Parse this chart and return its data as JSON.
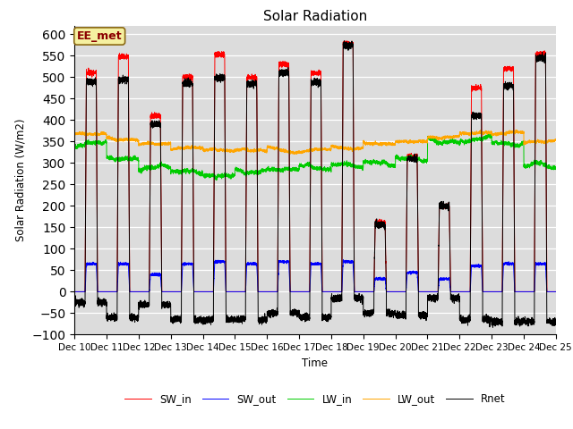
{
  "title": "Solar Radiation",
  "ylabel": "Solar Radiation (W/m2)",
  "xlabel": "Time",
  "xlim": [
    0,
    15
  ],
  "ylim": [
    -100,
    620
  ],
  "yticks": [
    -100,
    -50,
    0,
    50,
    100,
    150,
    200,
    250,
    300,
    350,
    400,
    450,
    500,
    550,
    600
  ],
  "xtick_labels": [
    "Dec 10",
    "Dec 11",
    "Dec 12",
    "Dec 13",
    "Dec 14",
    "Dec 15",
    "Dec 16",
    "Dec 17",
    "Dec 18",
    "Dec 19",
    "Dec 20",
    "Dec 21",
    "Dec 22",
    "Dec 23",
    "Dec 24",
    "Dec 25"
  ],
  "legend_entries": [
    "SW_in",
    "SW_out",
    "LW_in",
    "LW_out",
    "Rnet"
  ],
  "colors": {
    "SW_in": "#ff0000",
    "SW_out": "#0000ff",
    "LW_in": "#00cc00",
    "LW_out": "#ffa500",
    "Rnet": "#000000"
  },
  "annotation_text": "EE_met",
  "annotation_color": "#8B0000",
  "annotation_bg": "#f5f0a0",
  "bg_color": "#dcdcdc",
  "fig_bg": "#ffffff",
  "days": 15,
  "SW_in_peaks": [
    510,
    548,
    410,
    500,
    553,
    500,
    530,
    510,
    578,
    160,
    315,
    200,
    475,
    520,
    555
  ],
  "SW_out_peaks": [
    65,
    65,
    40,
    65,
    70,
    65,
    70,
    65,
    70,
    30,
    45,
    30,
    60,
    65,
    65
  ],
  "LW_in_base": [
    345,
    310,
    290,
    280,
    270,
    280,
    285,
    290,
    295,
    300,
    310,
    350,
    355,
    345,
    295
  ],
  "LW_out_base": [
    368,
    355,
    345,
    335,
    330,
    330,
    330,
    330,
    335,
    345,
    350,
    360,
    370,
    370,
    350
  ],
  "Rnet_peaks": [
    490,
    495,
    390,
    485,
    498,
    485,
    510,
    488,
    575,
    155,
    310,
    200,
    410,
    480,
    545
  ],
  "Rnet_night": [
    -25,
    -60,
    -30,
    -65,
    -65,
    -65,
    -50,
    -60,
    -15,
    -50,
    -55,
    -15,
    -65,
    -70,
    -70
  ],
  "day_start": 0.33,
  "day_end": 0.72
}
